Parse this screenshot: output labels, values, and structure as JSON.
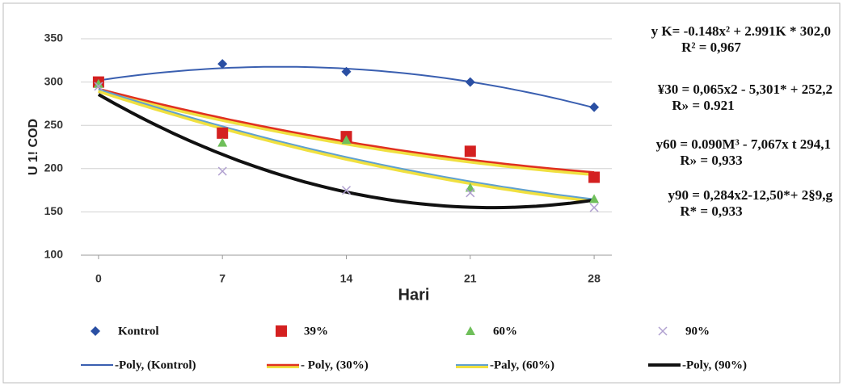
{
  "chart_data": {
    "type": "scatter",
    "x_label": "Hari",
    "y_label": "U 1! COD",
    "x": [
      0,
      7,
      14,
      21,
      28
    ],
    "xlim": [
      -1,
      29
    ],
    "xticks": [
      0,
      7,
      14,
      21,
      28
    ],
    "ylim": [
      100,
      350
    ],
    "yticks": [
      100,
      150,
      200,
      250,
      300,
      350
    ],
    "grid": true,
    "series": [
      {
        "name": "Kontrol",
        "color": "#2a4fa3",
        "marker": "diamond",
        "values": [
          300,
          321,
          312,
          300,
          271
        ],
        "trend_name": "-Poly, (Kontrol)",
        "trend_color": "#3a5fb0",
        "trend_width": 2
      },
      {
        "name": "39%",
        "color": "#d42020",
        "marker": "square",
        "values": [
          300,
          241,
          237,
          220,
          190
        ],
        "trend_name": "- Poly, (30%)",
        "trend_color": "#e03020",
        "trend_width": 2.5,
        "trend_halo": "#f0e040"
      },
      {
        "name": "60%",
        "color": "#6fbf5a",
        "marker": "triangle",
        "values": [
          298,
          230,
          233,
          178,
          165
        ],
        "trend_name": "-Paly, (60%)",
        "trend_color": "#5fa0d0",
        "trend_width": 2,
        "trend_halo": "#f0e040"
      },
      {
        "name": "90%",
        "color": "#b0a0d0",
        "marker": "cross",
        "values": [
          295,
          197,
          175,
          172,
          155
        ],
        "trend_name": "-Poly, (90%)",
        "trend_color": "#111111",
        "trend_width": 4
      }
    ],
    "annotations": [
      "y K= -0.148x² + 2.991K * 302,0",
      "R² = 0,967",
      "¥30 = 0,065x2 - 5,301* + 252,2",
      "R» = 0.921",
      "y60 = 0.090M³ - 7,067x t 294,1",
      "R» = 0,933",
      "y90 = 0,284x2-12,50*+ 2§9,g",
      "R* = 0,933"
    ]
  }
}
